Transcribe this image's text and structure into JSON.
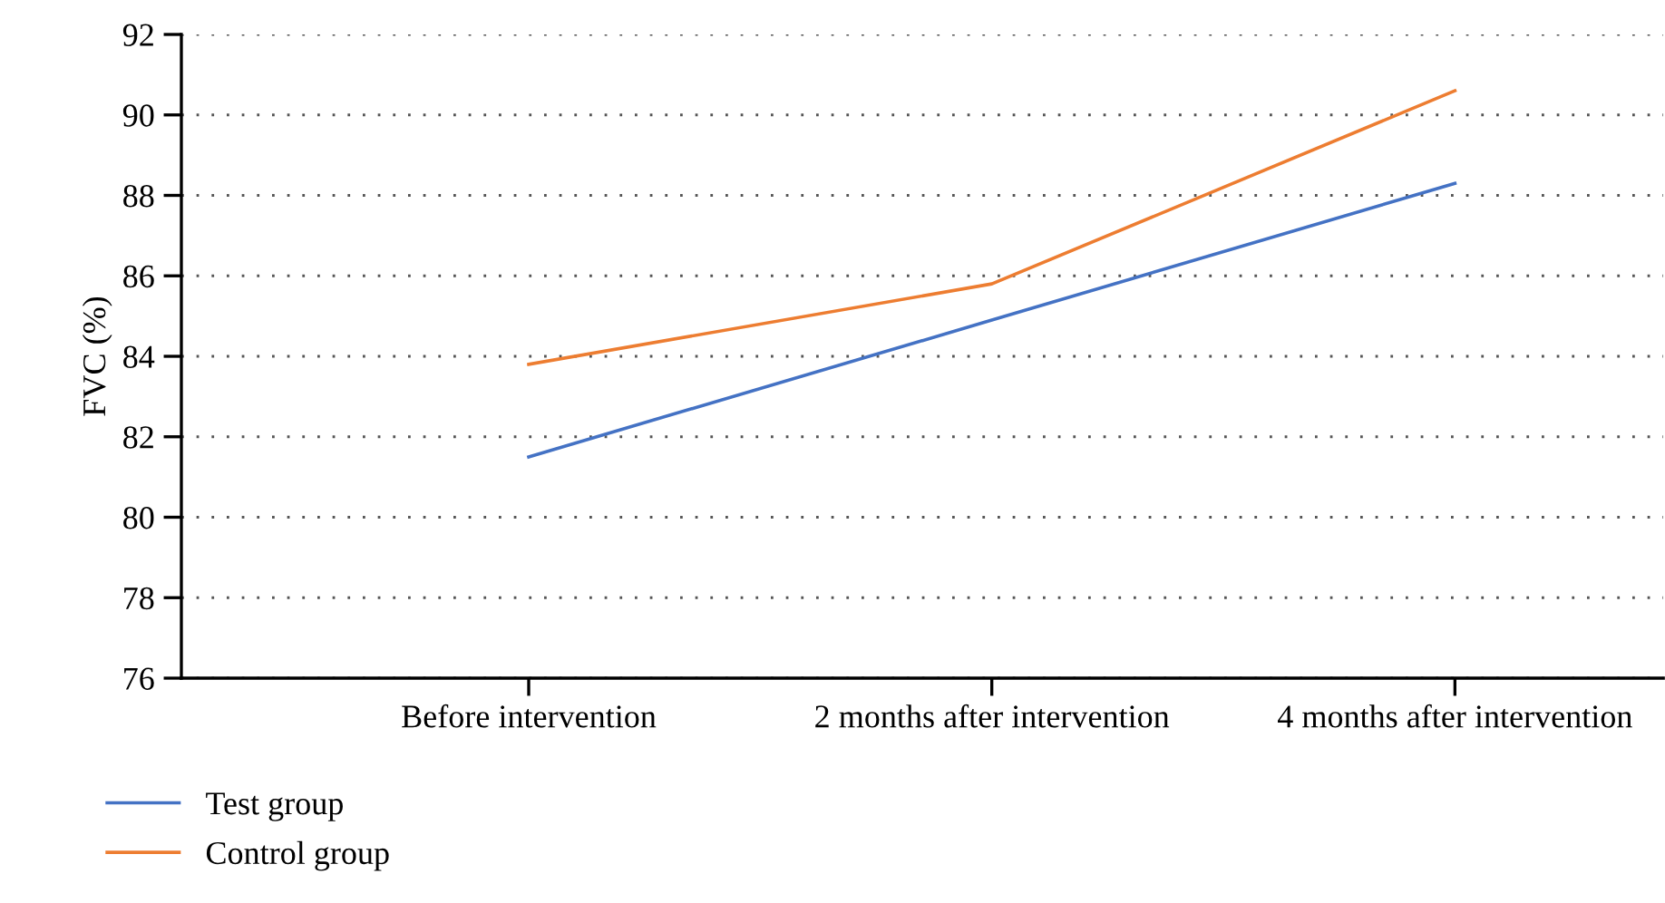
{
  "chart_data": {
    "type": "line",
    "ylabel": "FVC (%)",
    "categories": [
      "Before intervention",
      "2 months after intervention",
      "4 months after intervention"
    ],
    "series": [
      {
        "name": "Test group",
        "color": "#4472c4",
        "values": [
          81.5,
          84.9,
          88.3
        ]
      },
      {
        "name": "Control group",
        "color": "#ed7d31",
        "values": [
          83.8,
          85.8,
          90.6
        ]
      }
    ],
    "ylim": [
      76,
      92
    ],
    "yticks": [
      76,
      78,
      80,
      82,
      84,
      86,
      88,
      90,
      92
    ],
    "grid": "y",
    "legend": "bottom left",
    "marker": "none",
    "line_style": "solid"
  }
}
